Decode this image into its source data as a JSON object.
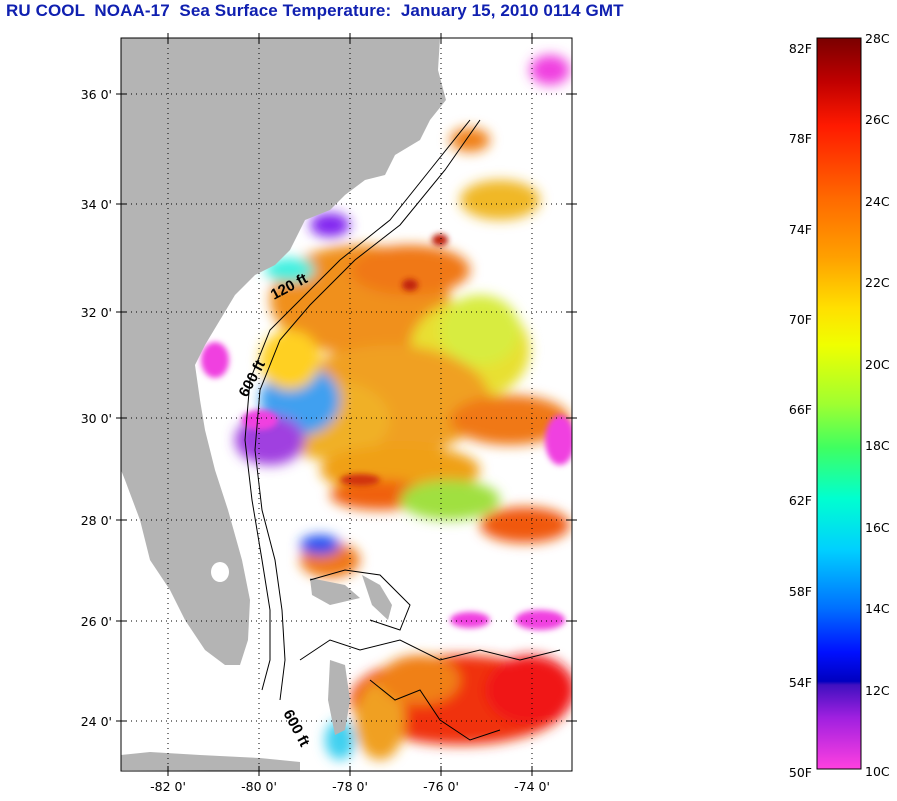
{
  "title": "RU COOL  NOAA-17  Sea Surface Temperature:  January 15, 2010 0114 GMT",
  "map": {
    "lat_labels": [
      {
        "value": 36,
        "text": "36 0'"
      },
      {
        "value": 34,
        "text": "34 0'"
      },
      {
        "value": 32,
        "text": "32 0'"
      },
      {
        "value": 30,
        "text": "30 0'"
      },
      {
        "value": 28,
        "text": "28 0'"
      },
      {
        "value": 26,
        "text": "26 0'"
      },
      {
        "value": 24,
        "text": "24 0'"
      }
    ],
    "lon_labels": [
      {
        "value": -82,
        "text": "-82 0'"
      },
      {
        "value": -80,
        "text": "-80 0'"
      },
      {
        "value": -78,
        "text": "-78 0'"
      },
      {
        "value": -76,
        "text": "-76 0'"
      },
      {
        "value": -74,
        "text": "-74 0'"
      }
    ],
    "isobath_labels": [
      "120 ft",
      "600 ft",
      "600 ft"
    ],
    "land_color": "#b4b4b4",
    "grid": true
  },
  "colorbar": {
    "f_labels": [
      "82F",
      "78F",
      "74F",
      "70F",
      "66F",
      "62F",
      "58F",
      "54F",
      "50F"
    ],
    "c_labels": [
      "28C",
      "26C",
      "24C",
      "22C",
      "20C",
      "18C",
      "16C",
      "14C",
      "12C",
      "10C"
    ]
  }
}
